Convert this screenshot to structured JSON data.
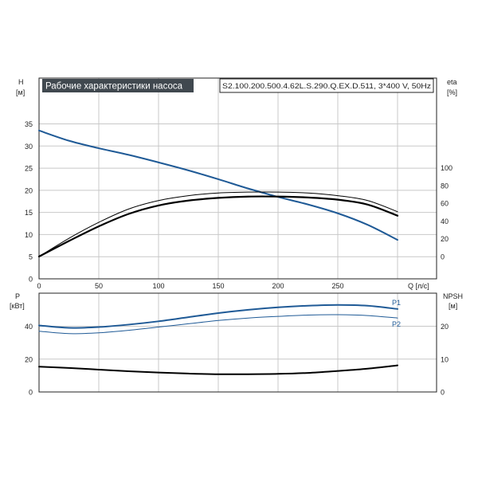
{
  "chart_data": [
    {
      "type": "line",
      "title": "Рабочие характеристики насоса",
      "model": "S2.100.200.500.4.62L.S.290.Q.EX.D.511, 3*400 V, 50Hz",
      "xlabel": "Q [л/с]",
      "ylabel_left": [
        "H",
        "[м]"
      ],
      "ylabel_right": [
        "eta",
        "[%]"
      ],
      "xlim": [
        0,
        300
      ],
      "ylim_left": [
        0,
        40
      ],
      "ylim_right_axis": [
        0,
        140
      ],
      "x_ticks": [
        "0",
        "50",
        "100",
        "150",
        "200",
        "250"
      ],
      "y_left_ticks": [
        "0",
        "5",
        "10",
        "15",
        "20",
        "25",
        "30",
        "35"
      ],
      "y_right_ticks": [
        "0",
        "20",
        "40",
        "60",
        "80",
        "100"
      ],
      "grid": true,
      "series": [
        {
          "axis": "left",
          "color": "#1f5a96",
          "x": [
            0,
            25,
            50,
            75,
            100,
            125,
            150,
            175,
            200,
            225,
            250,
            275,
            300
          ],
          "values": [
            33.5,
            31.2,
            29.5,
            28.0,
            26.3,
            24.5,
            22.5,
            20.4,
            18.5,
            16.8,
            14.8,
            12.2,
            8.8
          ]
        },
        {
          "axis": "right",
          "color": "#000000",
          "width": 1,
          "x": [
            0,
            25,
            50,
            75,
            100,
            125,
            150,
            175,
            200,
            225,
            250,
            275,
            300
          ],
          "values": [
            0,
            20.5,
            38.5,
            53.5,
            63,
            68.5,
            71.5,
            72.5,
            72.5,
            71.5,
            68.5,
            63,
            50.5
          ]
        },
        {
          "axis": "right",
          "color": "#000000",
          "width": 2.2,
          "x": [
            0,
            25,
            50,
            75,
            100,
            125,
            150,
            175,
            200,
            225,
            250,
            275,
            300
          ],
          "values": [
            0,
            17.5,
            34,
            48,
            57.5,
            63,
            66,
            67.5,
            67.5,
            66.5,
            64,
            58.5,
            46
          ]
        }
      ]
    },
    {
      "type": "line",
      "ylabel_left": [
        "P",
        "[кВт]"
      ],
      "ylabel_right": [
        "NPSH",
        "[м]"
      ],
      "xlim": [
        0,
        300
      ],
      "ylim_left": [
        0,
        60
      ],
      "ylim_right": [
        0,
        30
      ],
      "y_left_ticks": [
        "0",
        "20",
        "40"
      ],
      "y_right_ticks": [
        "0",
        "10",
        "20"
      ],
      "grid": true,
      "series": [
        {
          "name": "P1",
          "axis": "left",
          "color": "#1f5a96",
          "width": 2,
          "x": [
            0,
            25,
            50,
            75,
            100,
            125,
            150,
            175,
            200,
            225,
            250,
            275,
            300
          ],
          "values": [
            40.5,
            39.0,
            39.5,
            41.0,
            43.0,
            45.5,
            48.0,
            50.0,
            51.5,
            52.5,
            53.0,
            52.5,
            50.5
          ]
        },
        {
          "name": "P2",
          "axis": "left",
          "color": "#1f5a96",
          "width": 1,
          "x": [
            0,
            25,
            50,
            75,
            100,
            125,
            150,
            175,
            200,
            225,
            250,
            275,
            300
          ],
          "values": [
            37.0,
            35.5,
            36.0,
            37.5,
            39.5,
            41.5,
            43.5,
            45.0,
            46.0,
            46.8,
            47.0,
            46.5,
            45.0
          ]
        },
        {
          "axis": "right",
          "color": "#000000",
          "width": 2,
          "x": [
            0,
            25,
            50,
            75,
            100,
            125,
            150,
            175,
            200,
            225,
            250,
            275,
            300
          ],
          "values": [
            7.7,
            7.3,
            6.8,
            6.3,
            5.9,
            5.6,
            5.4,
            5.4,
            5.5,
            5.8,
            6.4,
            7.1,
            8.1
          ]
        }
      ]
    }
  ]
}
